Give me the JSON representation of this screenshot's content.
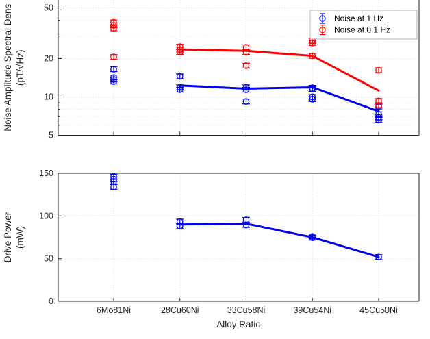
{
  "figure": {
    "xlabel": "Alloy Ratio",
    "categories": [
      "6Mo81Ni",
      "28Cu60Ni",
      "33Cu58Ni",
      "39Cu54Ni",
      "45Cu50Ni"
    ],
    "colors": {
      "blue": "#0000ee",
      "red": "#ff0000",
      "axis": "#262626",
      "legend_border": "#b3b3b3",
      "background": "#ffffff"
    },
    "legend": {
      "position": "northeast",
      "items": [
        {
          "label": "Noise at 1 Hz",
          "color": "blue"
        },
        {
          "label": "Noise at 0.1 Hz",
          "color": "red"
        }
      ]
    }
  },
  "chart_data": [
    {
      "type": "scatter",
      "title": "",
      "ylabel": [
        "Noise Amplitude Spectral Dens",
        "(pT/√Hz)"
      ],
      "xlabel": "",
      "yscale": "log",
      "ylim": [
        5,
        55
      ],
      "yticks": [
        5,
        10,
        20,
        50
      ],
      "yminorticks": [
        6,
        7,
        8,
        9,
        30,
        40
      ],
      "grid": true,
      "categories": [
        "6Mo81Ni",
        "28Cu60Ni",
        "33Cu58Ni",
        "39Cu54Ni",
        "45Cu50Ni"
      ],
      "series": [
        {
          "name": "Noise at 1 Hz",
          "color": "blue",
          "marker": "errorbar-circle",
          "scatter": [
            [
              13.2,
              13.7,
              14.2,
              16.5
            ],
            [
              11.4,
              11.9,
              14.5
            ],
            [
              9.2,
              11.4,
              11.9
            ],
            [
              9.6,
              10.0,
              11.5,
              11.8
            ],
            [
              6.6,
              6.9,
              7.3,
              8.4
            ]
          ],
          "trend": [
            null,
            12.3,
            11.6,
            11.9,
            7.7
          ]
        },
        {
          "name": "Noise at 0.1 Hz",
          "color": "red",
          "marker": "errorbar-circle",
          "scatter": [
            [
              20.6,
              34.5,
              36.5,
              38.5
            ],
            [
              22.5,
              23.5,
              24.8
            ],
            [
              17.6,
              22.5,
              24.5
            ],
            [
              21.0,
              26.5,
              27.5
            ],
            [
              8.6,
              9.3,
              16.2
            ]
          ],
          "trend": [
            null,
            23.6,
            23.0,
            21.0,
            11.2
          ]
        }
      ]
    },
    {
      "type": "scatter",
      "title": "",
      "ylabel": [
        "Drive Power",
        "(mW)"
      ],
      "xlabel": "Alloy Ratio",
      "yscale": "linear",
      "ylim": [
        0,
        150
      ],
      "yticks": [
        0,
        50,
        100,
        150
      ],
      "grid": true,
      "categories": [
        "6Mo81Ni",
        "28Cu60Ni",
        "33Cu58Ni",
        "39Cu54Ni",
        "45Cu50Ni"
      ],
      "series": [
        {
          "name": "Drive Power",
          "color": "blue",
          "marker": "errorbar-circle",
          "scatter": [
            [
              134,
              140.5,
              143,
              146
            ],
            [
              88,
              93.5
            ],
            [
              89.5,
              95.5
            ],
            [
              74.5,
              76
            ],
            [
              52
            ]
          ],
          "trend": [
            null,
            90,
            91,
            75,
            52
          ]
        }
      ]
    }
  ]
}
